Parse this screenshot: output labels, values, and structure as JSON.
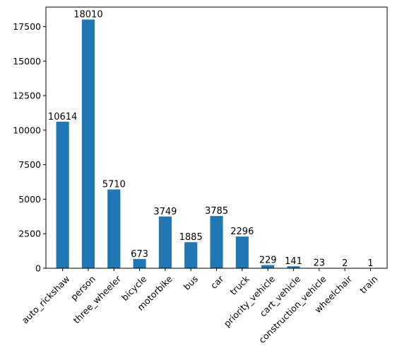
{
  "chart_data": {
    "type": "bar",
    "categories": [
      "auto_rickshaw",
      "person",
      "three_wheeler",
      "bicycle",
      "motorbike",
      "bus",
      "car",
      "truck",
      "priority_vehicle",
      "cart_vehicle",
      "construction_vehicle",
      "wheelchair",
      "train"
    ],
    "values": [
      10614,
      18010,
      5710,
      673,
      3749,
      1885,
      3785,
      2296,
      229,
      141,
      23,
      2,
      1
    ],
    "data_labels": [
      "10614",
      "18010",
      "5710",
      "673",
      "3749",
      "1885",
      "3785",
      "2296",
      "229",
      "141",
      "23",
      "2",
      "1"
    ],
    "yticks": [
      0,
      2500,
      5000,
      7500,
      10000,
      12500,
      15000,
      17500
    ],
    "ytick_labels": [
      "0",
      "2500",
      "5000",
      "7500",
      "10000",
      "12500",
      "15000",
      "17500"
    ],
    "ylim": [
      0,
      18911
    ],
    "title": "",
    "xlabel": "",
    "ylabel": "",
    "grid": false,
    "bar_color": "#1f77b4"
  }
}
